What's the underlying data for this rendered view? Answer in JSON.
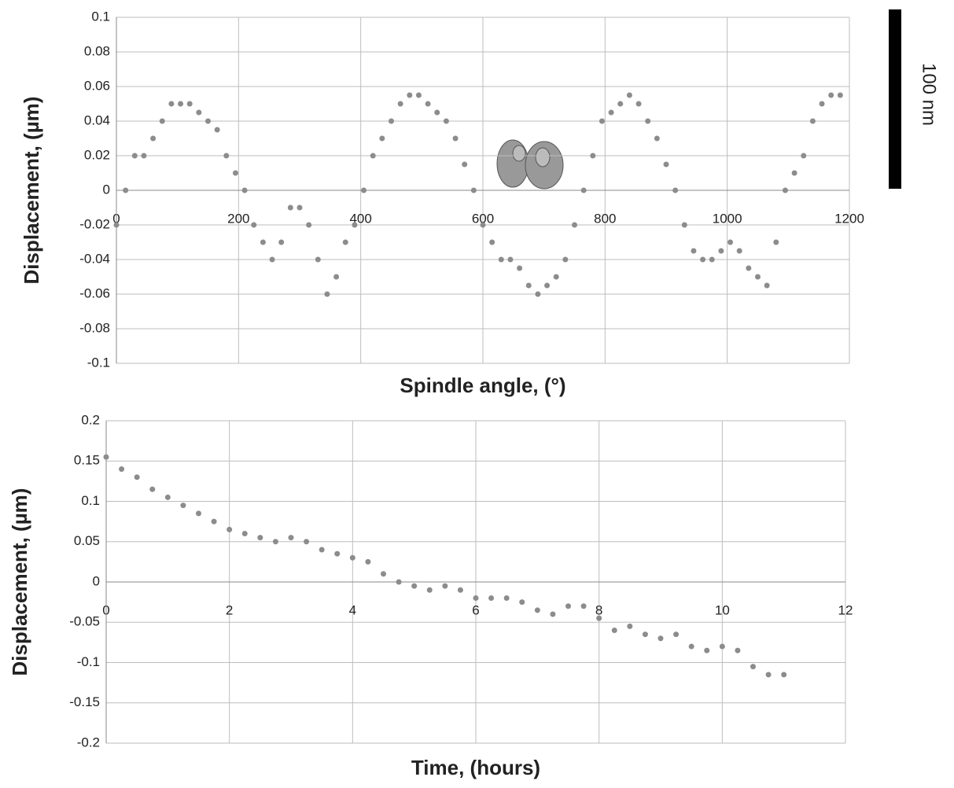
{
  "chart_data": [
    {
      "type": "scatter",
      "xlabel": "Spindle angle, (°)",
      "ylabel": "Displacement, (µm)",
      "color": "#8c8c8c",
      "grid": true,
      "xlim": [
        0,
        1200
      ],
      "xticks": [
        0,
        200,
        400,
        600,
        800,
        1000,
        1200
      ],
      "ylim": [
        -0.1,
        0.1
      ],
      "yticks": [
        0.1,
        0.08,
        0.06,
        0.04,
        0.02,
        0,
        -0.02,
        -0.04,
        -0.06,
        -0.08,
        -0.1
      ],
      "x": [
        0,
        15,
        30,
        45,
        60,
        75,
        90,
        105,
        120,
        135,
        150,
        165,
        180,
        195,
        210,
        225,
        240,
        255,
        270,
        285,
        300,
        315,
        330,
        345,
        360,
        375,
        390,
        405,
        420,
        435,
        450,
        465,
        480,
        495,
        510,
        525,
        540,
        555,
        570,
        585,
        600,
        615,
        630,
        645,
        660,
        675,
        690,
        705,
        720,
        735,
        750,
        765,
        780,
        795,
        810,
        825,
        840,
        855,
        870,
        885,
        900,
        915,
        930,
        945,
        960,
        975,
        990,
        1005,
        1020,
        1035,
        1050,
        1065,
        1080,
        1095,
        1110,
        1125,
        1140,
        1155,
        1170,
        1185
      ],
      "values": [
        -0.02,
        0.0,
        0.02,
        0.02,
        0.03,
        0.04,
        0.05,
        0.05,
        0.05,
        0.045,
        0.04,
        0.035,
        0.02,
        0.01,
        0.0,
        -0.02,
        -0.03,
        -0.04,
        -0.03,
        -0.01,
        -0.01,
        -0.02,
        -0.04,
        -0.06,
        -0.05,
        -0.03,
        -0.02,
        0.0,
        0.02,
        0.03,
        0.04,
        0.05,
        0.055,
        0.055,
        0.05,
        0.045,
        0.04,
        0.03,
        0.015,
        0.0,
        -0.02,
        -0.03,
        -0.04,
        -0.04,
        -0.045,
        -0.055,
        -0.06,
        -0.055,
        -0.05,
        -0.04,
        -0.02,
        0.0,
        0.02,
        0.04,
        0.045,
        0.05,
        0.055,
        0.05,
        0.04,
        0.03,
        0.015,
        0.0,
        -0.02,
        -0.035,
        -0.04,
        -0.04,
        -0.035,
        -0.03,
        -0.035,
        -0.045,
        -0.05,
        -0.055,
        -0.03,
        0.0,
        0.01,
        0.02,
        0.04,
        0.05,
        0.055,
        0.055
      ]
    },
    {
      "type": "scatter",
      "xlabel": "Time, (hours)",
      "ylabel": "Displacement, (µm)",
      "color": "#8c8c8c",
      "grid": true,
      "xlim": [
        0,
        12
      ],
      "xticks": [
        0,
        2,
        4,
        6,
        8,
        10,
        12
      ],
      "ylim": [
        -0.2,
        0.2
      ],
      "yticks": [
        0.2,
        0.15,
        0.1,
        0.05,
        0,
        -0.05,
        -0.1,
        -0.15,
        -0.2
      ],
      "x": [
        0,
        0.25,
        0.5,
        0.75,
        1,
        1.25,
        1.5,
        1.75,
        2,
        2.25,
        2.5,
        2.75,
        3,
        3.25,
        3.5,
        3.75,
        4,
        4.25,
        4.5,
        4.75,
        5,
        5.25,
        5.5,
        5.75,
        6,
        6.25,
        6.5,
        6.75,
        7,
        7.25,
        7.5,
        7.75,
        8,
        8.25,
        8.5,
        8.75,
        9,
        9.25,
        9.5,
        9.75,
        10,
        10.25,
        10.5,
        10.75,
        11
      ],
      "values": [
        0.155,
        0.14,
        0.13,
        0.115,
        0.105,
        0.095,
        0.085,
        0.075,
        0.065,
        0.06,
        0.055,
        0.05,
        0.055,
        0.05,
        0.04,
        0.035,
        0.03,
        0.025,
        0.01,
        0.0,
        -0.005,
        -0.01,
        -0.005,
        -0.01,
        -0.02,
        -0.02,
        -0.02,
        -0.025,
        -0.035,
        -0.04,
        -0.03,
        -0.03,
        -0.045,
        -0.06,
        -0.055,
        -0.065,
        -0.07,
        -0.065,
        -0.08,
        -0.085,
        -0.08,
        -0.085,
        -0.105,
        -0.115,
        -0.115
      ]
    }
  ],
  "scale_bar": {
    "label": "100 nm"
  }
}
